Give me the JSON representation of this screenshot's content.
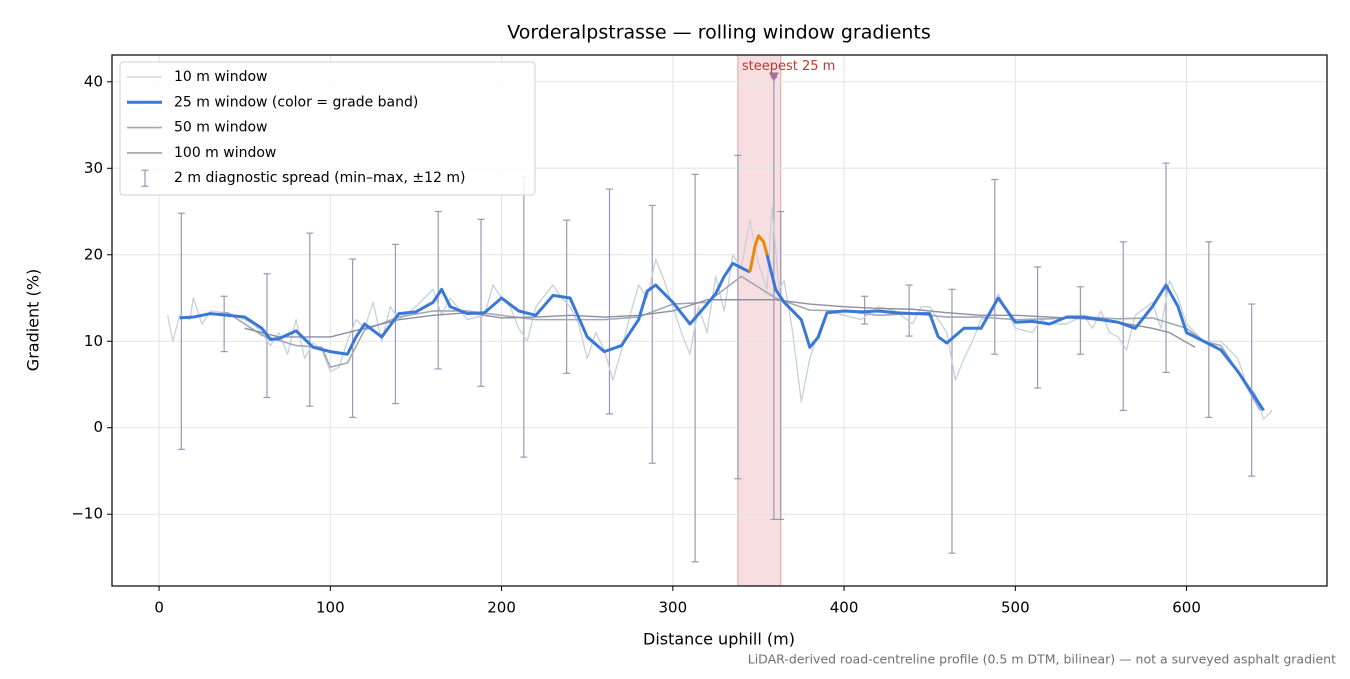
{
  "chart_data": {
    "type": "line",
    "title": "Vorderalpstrasse — rolling window gradients",
    "xlabel": "Distance uphill (m)",
    "ylabel": "Gradient (%)",
    "footnote": "LiDAR-derived road-centreline profile (0.5 m DTM, bilinear) — not a surveyed asphalt gradient",
    "xlim": [
      -27.5,
      682
    ],
    "ylim": [
      -18.3,
      43.1
    ],
    "xticks": [
      0,
      100,
      200,
      300,
      400,
      500,
      600
    ],
    "yticks": [
      {
        "value": -10,
        "label": "−10"
      },
      0,
      10,
      20,
      30,
      40
    ],
    "grid": true,
    "legend": "upper left",
    "highlight": {
      "x": [
        338,
        363
      ],
      "color": "#e8a0a8"
    },
    "annotation": {
      "text": "steepest 25 m",
      "x": 359,
      "y": 40.5,
      "color": "#c0392b"
    },
    "series": [
      {
        "name": "10 m window",
        "color": "#c8d0da",
        "width": 1.3,
        "x": [
          5,
          8,
          12,
          18,
          20,
          25,
          30,
          40,
          50,
          55,
          60,
          65,
          70,
          75,
          80,
          85,
          90,
          95,
          100,
          105,
          110,
          115,
          120,
          125,
          130,
          135,
          140,
          150,
          160,
          165,
          170,
          180,
          190,
          195,
          200,
          205,
          210,
          215,
          220,
          230,
          235,
          240,
          245,
          250,
          255,
          260,
          265,
          270,
          275,
          280,
          285,
          290,
          295,
          300,
          305,
          310,
          315,
          320,
          325,
          330,
          335,
          340,
          345,
          350,
          355,
          358,
          362,
          365,
          370,
          375,
          380,
          385,
          390,
          400,
          410,
          420,
          430,
          440,
          445,
          450,
          455,
          460,
          465,
          470,
          475,
          480,
          485,
          490,
          500,
          510,
          515,
          520,
          530,
          540,
          545,
          550,
          555,
          560,
          565,
          570,
          580,
          585,
          590,
          595,
          600,
          605,
          610,
          620,
          625,
          630,
          635,
          640,
          645,
          650
        ],
        "values": [
          13,
          10,
          13,
          12.5,
          15,
          12,
          13.5,
          13.3,
          12.5,
          12,
          11,
          9.5,
          11,
          8.5,
          12.5,
          8,
          9.8,
          9,
          6.5,
          7,
          10,
          12.5,
          11.5,
          14.5,
          10,
          14,
          12.5,
          14,
          16,
          13,
          15,
          12.5,
          13,
          16.5,
          15,
          14,
          11.5,
          10,
          14,
          16.5,
          15,
          14,
          12,
          8,
          11,
          9,
          5.5,
          9,
          13,
          16.5,
          15,
          19.5,
          17,
          14,
          11,
          8.5,
          14,
          11,
          17.5,
          13.5,
          20,
          18.5,
          24,
          19,
          16,
          25.5,
          16,
          17,
          11,
          3,
          8,
          11,
          13.5,
          13,
          12.5,
          14,
          13.5,
          12,
          14,
          14,
          12.5,
          11,
          5.5,
          8,
          10,
          12.5,
          13,
          15.5,
          11.5,
          11,
          12.5,
          12,
          12,
          13,
          11.5,
          13.5,
          11,
          10.5,
          9,
          13,
          14.5,
          11.5,
          17,
          15,
          12,
          11,
          10,
          10,
          9,
          8,
          5,
          4,
          1,
          2
        ]
      },
      {
        "name": "25 m window (color = grade band)",
        "color": "#3a78d8",
        "width": 3,
        "x": [
          12,
          20,
          30,
          40,
          50,
          60,
          65,
          70,
          80,
          90,
          100,
          110,
          115,
          120,
          130,
          140,
          150,
          160,
          165,
          170,
          180,
          190,
          200,
          210,
          220,
          230,
          240,
          250,
          260,
          270,
          280,
          285,
          290,
          300,
          310,
          320,
          325,
          330,
          335,
          340,
          345,
          348,
          350,
          353,
          355,
          360,
          365,
          370,
          375,
          380,
          385,
          390,
          400,
          410,
          420,
          430,
          440,
          450,
          455,
          460,
          470,
          480,
          490,
          500,
          510,
          520,
          530,
          540,
          550,
          560,
          570,
          580,
          588,
          595,
          600,
          610,
          620,
          630,
          640,
          645
        ],
        "values": [
          12.7,
          12.8,
          13.2,
          13,
          12.8,
          11.5,
          10.2,
          10.3,
          11.2,
          9.3,
          8.8,
          8.5,
          10.5,
          12,
          10.5,
          13.2,
          13.4,
          14.5,
          16,
          14,
          13.2,
          13.3,
          15,
          13.5,
          13,
          15.3,
          15,
          10.5,
          8.8,
          9.5,
          12.5,
          15.8,
          16.5,
          14.5,
          12,
          14.3,
          15.5,
          17.5,
          19,
          18.5,
          18,
          21,
          22.2,
          21.5,
          20,
          16,
          14.5,
          13.5,
          12.5,
          9.3,
          10.5,
          13.3,
          13.5,
          13.4,
          13.5,
          13.3,
          13.2,
          13.2,
          10.5,
          9.8,
          11.5,
          11.5,
          15,
          12.2,
          12.3,
          12,
          12.8,
          12.8,
          12.5,
          12.2,
          11.5,
          14,
          16.5,
          14,
          11,
          10,
          9,
          6.5,
          3.5,
          2
        ],
        "colors": [
          "#3a78d8",
          "#3a78d8",
          "#3a78d8",
          "#3a78d8",
          "#3a78d8",
          "#3a78d8",
          "#3a78d8",
          "#3a78d8",
          "#3a78d8",
          "#3a78d8",
          "#3a78d8",
          "#3a78d8",
          "#3a78d8",
          "#3a78d8",
          "#3a78d8",
          "#3a78d8",
          "#3a78d8",
          "#3a78d8",
          "#3a78d8",
          "#3a78d8",
          "#3a78d8",
          "#3a78d8",
          "#3a78d8",
          "#3a78d8",
          "#3a78d8",
          "#3a78d8",
          "#3a78d8",
          "#3a78d8",
          "#3a78d8",
          "#3a78d8",
          "#3a78d8",
          "#3a78d8",
          "#3a78d8",
          "#3a78d8",
          "#3a78d8",
          "#3a78d8",
          "#3a78d8",
          "#3a78d8",
          "#3a78d8",
          "#3a78d8",
          "#3a78d8",
          "#e8890c",
          "#e8890c",
          "#e8890c",
          "#e8890c",
          "#3a78d8",
          "#3a78d8",
          "#3a78d8",
          "#3a78d8",
          "#3a78d8",
          "#3a78d8",
          "#3a78d8",
          "#3a78d8",
          "#3a78d8",
          "#3a78d8",
          "#3a78d8",
          "#3a78d8",
          "#3a78d8",
          "#3a78d8",
          "#3a78d8",
          "#3a78d8",
          "#3a78d8",
          "#3a78d8",
          "#3a78d8",
          "#3a78d8",
          "#3a78d8",
          "#3a78d8",
          "#3a78d8",
          "#3a78d8",
          "#3a78d8",
          "#3a78d8",
          "#3a78d8",
          "#3a78d8",
          "#3a78d8",
          "#3a78d8",
          "#3a78d8",
          "#3a78d8",
          "#3a78d8",
          "#3a78d8",
          "#3a78d8"
        ]
      },
      {
        "name": "50 m window",
        "color": "#a0a8b8",
        "width": 1.6,
        "x": [
          25,
          40,
          60,
          80,
          95,
          100,
          110,
          120,
          140,
          160,
          180,
          200,
          220,
          240,
          260,
          280,
          300,
          320,
          340,
          360,
          380,
          400,
          420,
          440,
          460,
          480,
          500,
          520,
          540,
          560,
          580,
          600,
          610,
          620,
          630,
          643
        ],
        "values": [
          13,
          13.3,
          10.7,
          9.5,
          9.3,
          7,
          7.5,
          11.3,
          12.8,
          13.5,
          13.5,
          13,
          12.5,
          12.5,
          12.5,
          12.8,
          14.3,
          14.5,
          17.5,
          15,
          13.6,
          13.5,
          13,
          13.2,
          12.8,
          12.8,
          12.5,
          12.6,
          12.8,
          12.6,
          12.7,
          11.5,
          10,
          9.5,
          6.5,
          2
        ]
      },
      {
        "name": "100 m window",
        "color": "#8a90a0",
        "width": 1.4,
        "x": [
          50,
          70,
          100,
          120,
          140,
          160,
          180,
          200,
          220,
          240,
          260,
          280,
          300,
          320,
          340,
          360,
          380,
          400,
          420,
          440,
          460,
          480,
          500,
          520,
          540,
          560,
          580,
          590,
          605
        ],
        "values": [
          11.5,
          10.5,
          10.5,
          11.5,
          12.5,
          13,
          13.3,
          12.7,
          12.8,
          13,
          12.8,
          13,
          13.5,
          14.8,
          14.8,
          14.8,
          14.3,
          14,
          13.8,
          13.7,
          13.3,
          13,
          13,
          12.8,
          12.6,
          12.2,
          11.5,
          11,
          9.3
        ]
      }
    ],
    "error_bars": {
      "name": "2 m diagnostic spread (min–max, ±12 m)",
      "color": "#9a98b8",
      "x": [
        13,
        38,
        63,
        88,
        113,
        138,
        163,
        188,
        213,
        238,
        263,
        288,
        313,
        338,
        359,
        363,
        412,
        438,
        463,
        488,
        513,
        538,
        563,
        588,
        613,
        638
      ],
      "low": [
        -2.5,
        8.8,
        3.5,
        2.5,
        1.2,
        2.8,
        6.8,
        4.8,
        -3.4,
        6.3,
        1.6,
        -4.1,
        -15.5,
        -5.9,
        -10.6,
        -10.6,
        12,
        10.6,
        -14.5,
        8.5,
        4.6,
        8.5,
        2,
        6.4,
        1.2,
        -5.6
      ],
      "high": [
        24.8,
        15.2,
        17.8,
        22.5,
        19.5,
        21.2,
        25,
        24.1,
        29,
        24,
        27.6,
        25.7,
        29.3,
        31.5,
        40.5,
        25,
        15.2,
        16.5,
        16,
        28.7,
        18.6,
        16.3,
        21.5,
        30.6,
        21.5,
        14.3
      ]
    }
  }
}
